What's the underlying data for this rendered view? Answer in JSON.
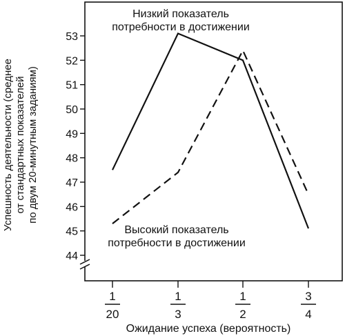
{
  "chart_data": {
    "type": "line",
    "ylabel_lines": [
      "Успешность деятельности (среднее",
      "от стандартных показателей",
      "по двум 20-минутным заданиям)"
    ],
    "xlabel": "Ожидание успеха (вероятность)",
    "ylim": [
      44,
      53
    ],
    "y_ticks": [
      44,
      45,
      46,
      47,
      48,
      49,
      50,
      51,
      52,
      53
    ],
    "y_axis_break": true,
    "grid": false,
    "categories": [
      {
        "num": "1",
        "den": "20"
      },
      {
        "num": "1",
        "den": "3"
      },
      {
        "num": "1",
        "den": "2"
      },
      {
        "num": "3",
        "den": "4"
      }
    ],
    "series": [
      {
        "name_lines": [
          "Низкий показатель",
          "потребности в достижении"
        ],
        "style": "solid",
        "values": [
          47.5,
          53.1,
          52.0,
          45.1
        ]
      },
      {
        "name_lines": [
          "Высокий показатель",
          "потребности в достижении"
        ],
        "style": "dashed",
        "values": [
          45.3,
          47.4,
          52.4,
          46.5
        ]
      }
    ]
  }
}
